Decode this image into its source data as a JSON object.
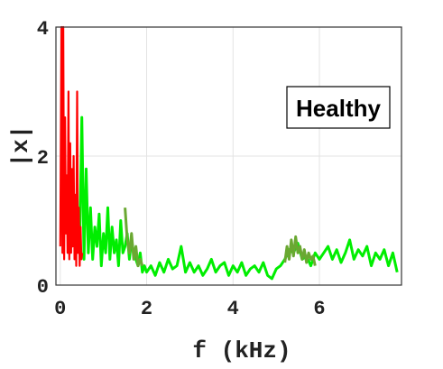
{
  "chart_data": {
    "type": "line",
    "title": "",
    "xlabel": "f (kHz)",
    "ylabel": "|x|",
    "xlim": [
      -0.1,
      7.9
    ],
    "ylim": [
      0,
      4
    ],
    "xticks": [
      "0",
      "2",
      "4",
      "6"
    ],
    "yticks": [
      "0",
      "2",
      "4"
    ],
    "grid": true,
    "legend": {
      "text": "Healthy",
      "placement": "top-right"
    },
    "colors": {
      "low": "#ff0000",
      "main": "#00ee00",
      "band": "#6aa832"
    },
    "series": [
      {
        "color": "#ff0000",
        "x": [
          0.0,
          0.03,
          0.05,
          0.07,
          0.09,
          0.11,
          0.13,
          0.15,
          0.17,
          0.19,
          0.21,
          0.23,
          0.25,
          0.27,
          0.29,
          0.31,
          0.33,
          0.35,
          0.37,
          0.39,
          0.41,
          0.43,
          0.45,
          0.47,
          0.49,
          0.51
        ],
        "y": [
          0.6,
          4.0,
          0.5,
          4.0,
          0.4,
          2.6,
          0.8,
          1.7,
          0.5,
          3.0,
          0.4,
          2.2,
          0.5,
          1.8,
          0.6,
          2.0,
          0.4,
          1.4,
          0.3,
          3.0,
          0.5,
          1.2,
          0.3,
          0.9,
          0.4,
          0.5
        ]
      },
      {
        "color": "#00ee00",
        "x": [
          0.45,
          0.5,
          0.55,
          0.6,
          0.65,
          0.7,
          0.75,
          0.8,
          0.85,
          0.9,
          0.95,
          1.0,
          1.05,
          1.1,
          1.15,
          1.2,
          1.25,
          1.3,
          1.35,
          1.4,
          1.45,
          1.5,
          1.55,
          1.6,
          1.65,
          1.7,
          1.75,
          1.8,
          1.85,
          1.9,
          1.95,
          2.0,
          2.1,
          2.2,
          2.3,
          2.4,
          2.5,
          2.6,
          2.7,
          2.8,
          2.9,
          3.0,
          3.1,
          3.2,
          3.3,
          3.4,
          3.5,
          3.6,
          3.7,
          3.8,
          3.9,
          4.0,
          4.1,
          4.2,
          4.3,
          4.4,
          4.5,
          4.6,
          4.7,
          4.8,
          4.9,
          5.0,
          5.1,
          5.2,
          5.3,
          5.4,
          5.5,
          5.6,
          5.7,
          5.8,
          5.9,
          6.0,
          6.1,
          6.2,
          6.3,
          6.4,
          6.5,
          6.6,
          6.7,
          6.8,
          6.9,
          7.0,
          7.1,
          7.2,
          7.3,
          7.4,
          7.5,
          7.6,
          7.7,
          7.8
        ],
        "y": [
          0.6,
          2.6,
          0.4,
          1.8,
          0.5,
          1.2,
          0.4,
          0.9,
          0.6,
          1.1,
          0.3,
          0.8,
          0.5,
          1.2,
          0.4,
          0.9,
          0.5,
          0.7,
          0.3,
          1.0,
          0.5,
          0.6,
          0.8,
          0.4,
          0.7,
          0.5,
          0.4,
          0.3,
          0.5,
          0.2,
          0.3,
          0.2,
          0.3,
          0.15,
          0.35,
          0.2,
          0.4,
          0.25,
          0.3,
          0.6,
          0.2,
          0.35,
          0.2,
          0.3,
          0.15,
          0.25,
          0.4,
          0.2,
          0.3,
          0.35,
          0.15,
          0.3,
          0.2,
          0.35,
          0.15,
          0.25,
          0.3,
          0.2,
          0.35,
          0.15,
          0.1,
          0.25,
          0.3,
          0.4,
          0.55,
          0.5,
          0.65,
          0.4,
          0.45,
          0.3,
          0.5,
          0.4,
          0.5,
          0.6,
          0.4,
          0.55,
          0.35,
          0.5,
          0.7,
          0.4,
          0.55,
          0.45,
          0.6,
          0.3,
          0.5,
          0.4,
          0.55,
          0.3,
          0.5,
          0.2
        ]
      },
      {
        "color": "#6aa832",
        "x": [
          1.5,
          1.55,
          1.6,
          1.65,
          1.7,
          1.75,
          1.8,
          1.85,
          1.9
        ],
        "y": [
          1.2,
          0.7,
          0.5,
          0.8,
          0.4,
          0.6,
          0.3,
          0.4,
          0.3
        ]
      },
      {
        "color": "#6aa832",
        "x": [
          5.2,
          5.25,
          5.3,
          5.35,
          5.4,
          5.45,
          5.5,
          5.55,
          5.6,
          5.65,
          5.7,
          5.75,
          5.8,
          5.85,
          5.9
        ],
        "y": [
          0.35,
          0.6,
          0.4,
          0.7,
          0.45,
          0.75,
          0.5,
          0.6,
          0.4,
          0.55,
          0.35,
          0.5,
          0.4,
          0.45,
          0.3
        ]
      }
    ]
  }
}
